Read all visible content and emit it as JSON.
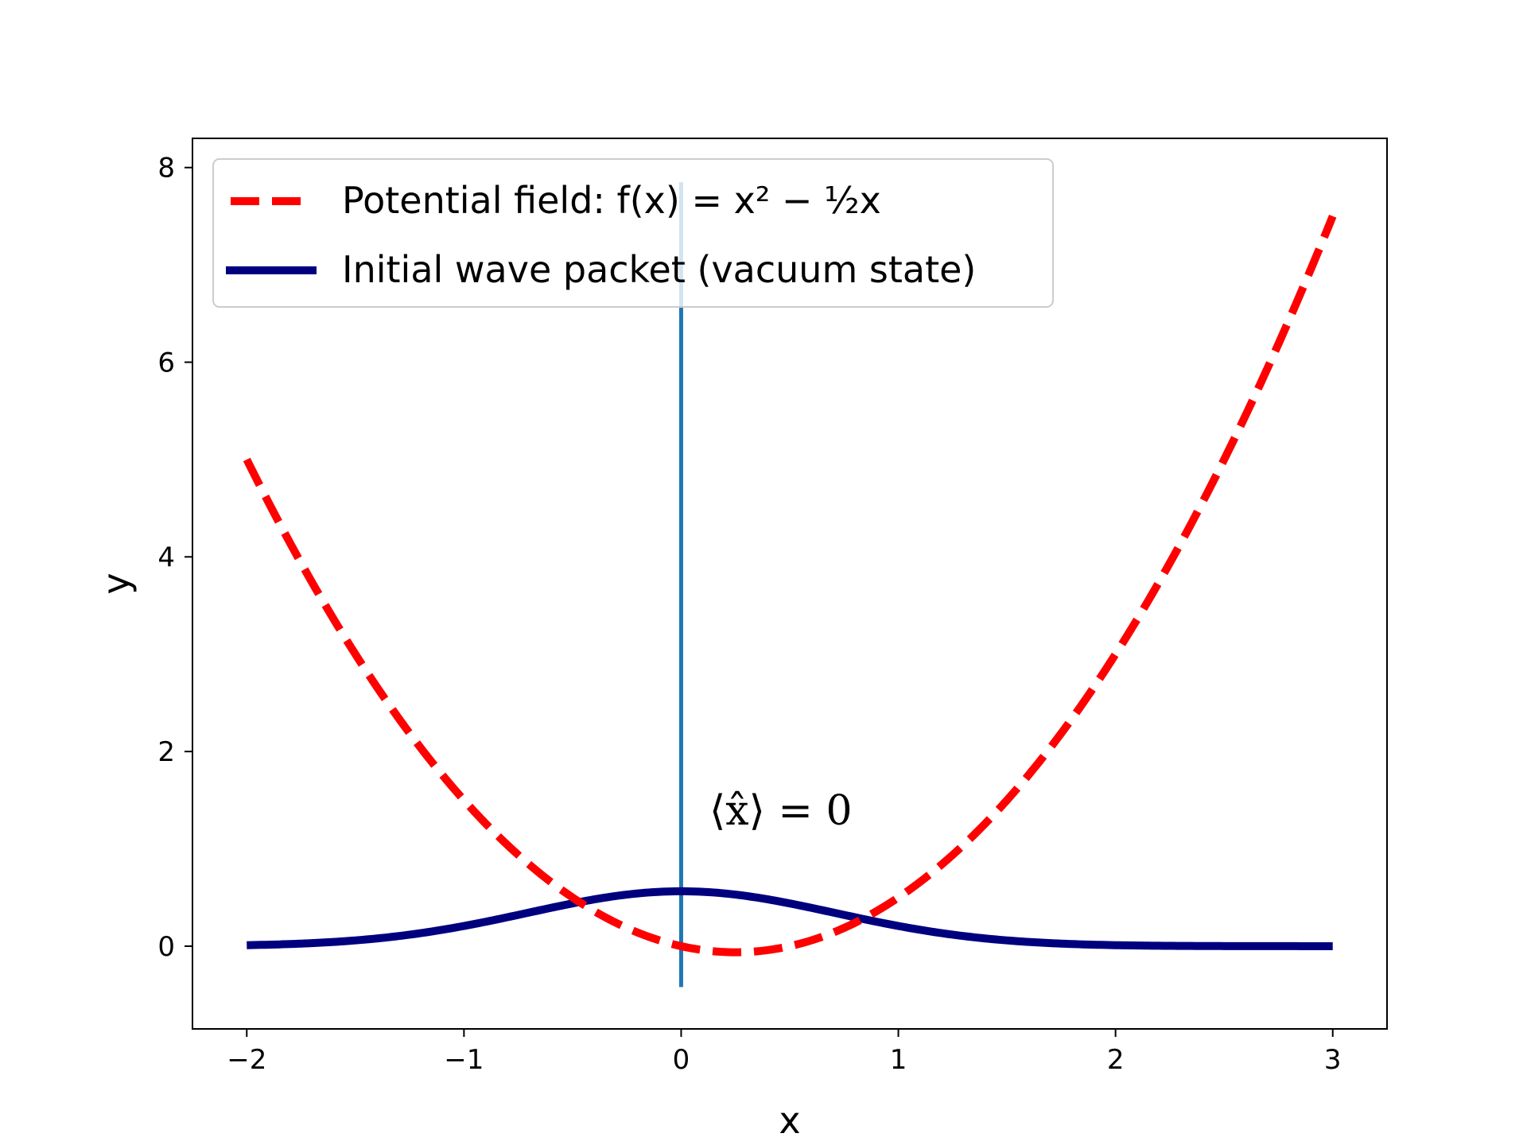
{
  "chart_data": {
    "type": "line",
    "title": "",
    "xlabel": "x",
    "ylabel": "y",
    "xlim": [
      -2.25,
      3.25
    ],
    "ylim": [
      -0.85,
      8.3
    ],
    "xticks": [
      -2,
      -1,
      0,
      1,
      2,
      3
    ],
    "xtick_labels": [
      "−2",
      "−1",
      "0",
      "1",
      "2",
      "3"
    ],
    "yticks": [
      0,
      2,
      4,
      6,
      8
    ],
    "ytick_labels": [
      "0",
      "2",
      "4",
      "6",
      "8"
    ],
    "grid": false,
    "legend_position": "upper-left",
    "series": [
      {
        "name": "Potential field: f(x) = x² − ½x",
        "style": "dashed",
        "color": "#ff0000",
        "x": [
          -2.0,
          -1.75,
          -1.5,
          -1.25,
          -1.0,
          -0.75,
          -0.5,
          -0.25,
          0.0,
          0.25,
          0.5,
          0.75,
          1.0,
          1.25,
          1.5,
          1.75,
          2.0,
          2.25,
          2.5,
          2.75,
          3.0
        ],
        "y": [
          5.0,
          3.94,
          3.0,
          2.19,
          1.5,
          0.94,
          0.5,
          0.19,
          0.0,
          -0.06,
          0.0,
          0.19,
          0.5,
          0.94,
          1.5,
          2.19,
          3.0,
          3.94,
          5.0,
          6.19,
          7.5
        ]
      },
      {
        "name": "Initial wave packet (vacuum state)",
        "style": "solid",
        "color": "#00007f",
        "x": [
          -2.0,
          -1.75,
          -1.5,
          -1.25,
          -1.0,
          -0.75,
          -0.5,
          -0.25,
          0.0,
          0.25,
          0.5,
          0.75,
          1.0,
          1.25,
          1.5,
          1.75,
          2.0,
          2.25,
          2.5,
          2.75,
          3.0
        ],
        "y": [
          0.01,
          0.03,
          0.06,
          0.12,
          0.21,
          0.32,
          0.44,
          0.53,
          0.56,
          0.53,
          0.44,
          0.32,
          0.21,
          0.12,
          0.06,
          0.03,
          0.01,
          0.004,
          0.001,
          0.0,
          0.0
        ]
      }
    ],
    "vline": {
      "x": 0,
      "y_from": -0.42,
      "y_to": 7.85,
      "color": "#1f77b4"
    },
    "annotation": {
      "text": "⟨x̂⟩ = 0",
      "x": 0.13,
      "y": 1.25
    }
  }
}
